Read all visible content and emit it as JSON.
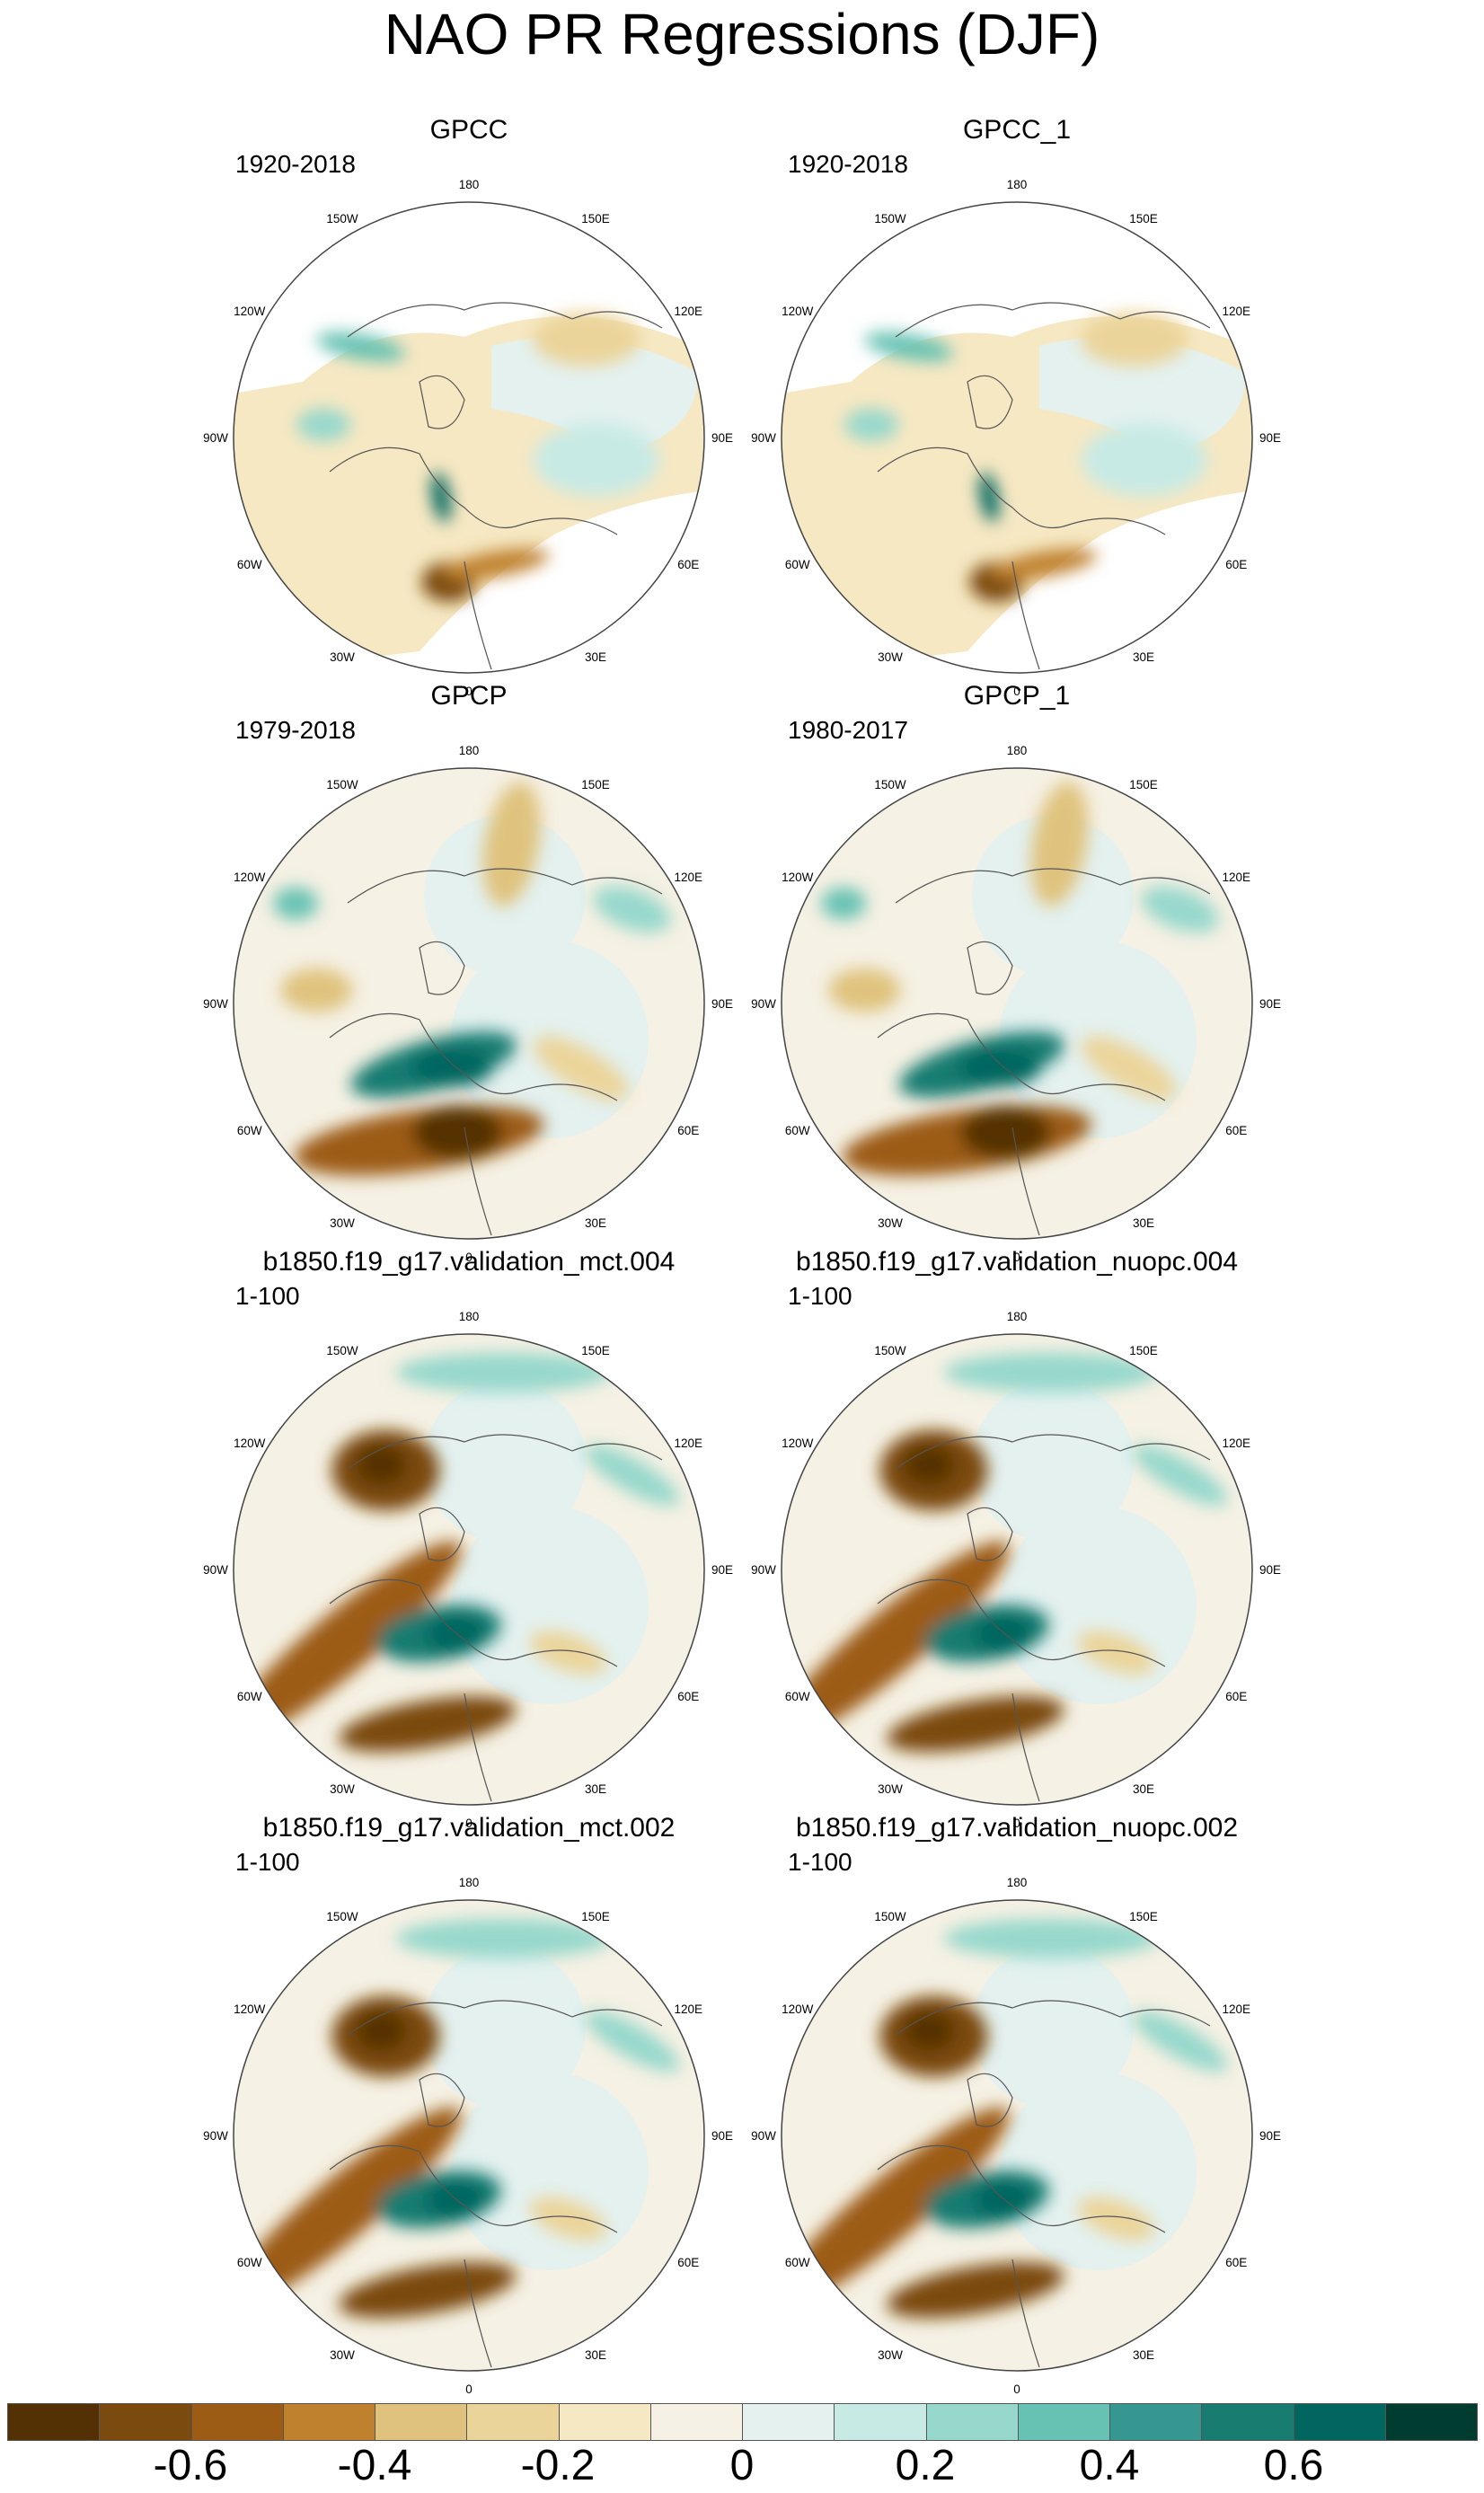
{
  "title": "NAO PR Regressions (DJF)",
  "longitude_labels": [
    "180",
    "150E",
    "120E",
    "90E",
    "60E",
    "30E",
    "0",
    "30W",
    "60W",
    "90W",
    "120W",
    "150W"
  ],
  "panels": [
    {
      "title": "GPCC",
      "period": "1920-2018",
      "type": "obs-land"
    },
    {
      "title": "GPCC_1",
      "period": "1920-2018",
      "type": "obs-land"
    },
    {
      "title": "GPCP",
      "period": "1979-2018",
      "type": "obs-full"
    },
    {
      "title": "GPCP_1",
      "period": "1980-2017",
      "type": "obs-full"
    },
    {
      "title": "b1850.f19_g17.validation_mct.004",
      "period": "1-100",
      "type": "model"
    },
    {
      "title": "b1850.f19_g17.validation_nuopc.004",
      "period": "1-100",
      "type": "model"
    },
    {
      "title": "b1850.f19_g17.validation_mct.002",
      "period": "1-100",
      "type": "model"
    },
    {
      "title": "b1850.f19_g17.validation_nuopc.002",
      "period": "1-100",
      "type": "model"
    }
  ],
  "colorbar": {
    "colors": [
      "#543005",
      "#7a4a0e",
      "#9c5c16",
      "#bf812d",
      "#dfc27d",
      "#ebd49a",
      "#f6e8c3",
      "#f5f1e4",
      "#e4f1ef",
      "#c7eae5",
      "#97d8cc",
      "#67c2b3",
      "#35978f",
      "#187c71",
      "#01665e",
      "#003c30"
    ],
    "labels": [
      "-0.6",
      "-0.4",
      "-0.2",
      "0",
      "0.2",
      "0.4",
      "0.6"
    ]
  }
}
